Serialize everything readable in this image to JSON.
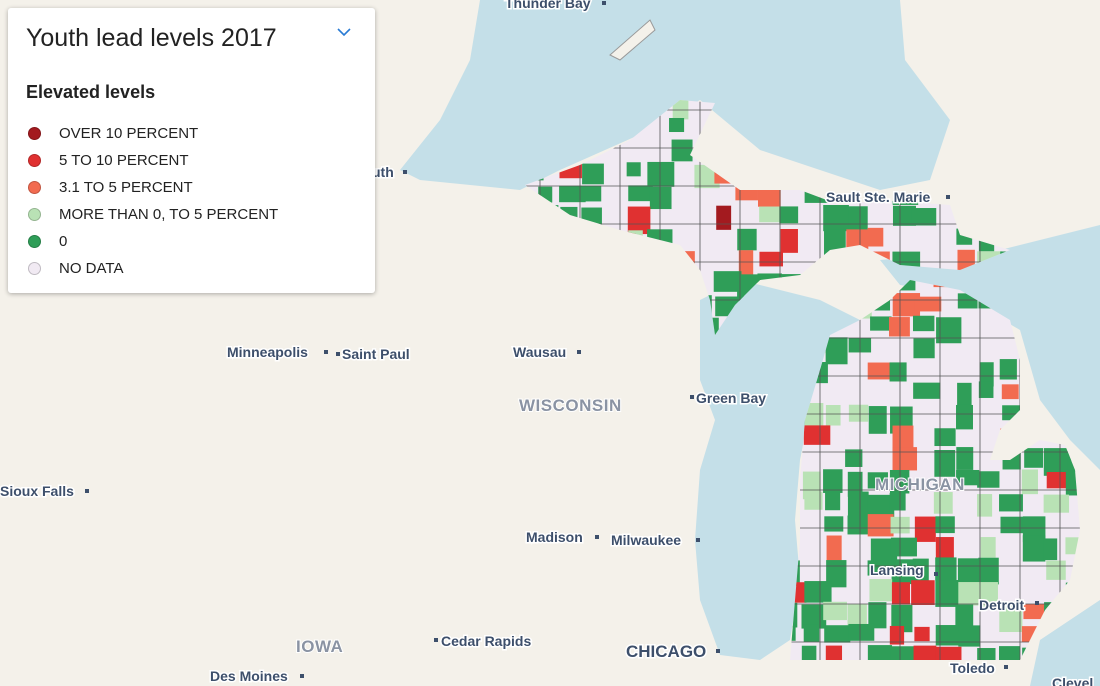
{
  "legend": {
    "title": "Youth lead levels 2017",
    "heading": "Elevated levels",
    "items": [
      {
        "label": "OVER 10 PERCENT",
        "color": "#a31a1f"
      },
      {
        "label": "5 TO 10 PERCENT",
        "color": "#e03131"
      },
      {
        "label": "3.1 TO 5 PERCENT",
        "color": "#f26b50"
      },
      {
        "label": "MORE THAN 0, TO 5 PERCENT",
        "color": "#b9e2b5"
      },
      {
        "label": "0",
        "color": "#2f9e58"
      },
      {
        "label": "NO DATA",
        "color": "#f1eaf3"
      }
    ]
  },
  "map_labels": [
    "Thunder Bay",
    "uth",
    "Sault Ste. Marie",
    "Minneapolis",
    "Saint Paul",
    "Wausau",
    "WISCONSIN",
    "Green Bay",
    "Sioux Falls",
    "MICHIGAN",
    "Madison",
    "Milwaukee",
    "Lansing",
    "Detroit",
    "IOWA",
    "Cedar Rapids",
    "CHICAGO",
    "Des Moines",
    "Toledo",
    "Clevel"
  ]
}
